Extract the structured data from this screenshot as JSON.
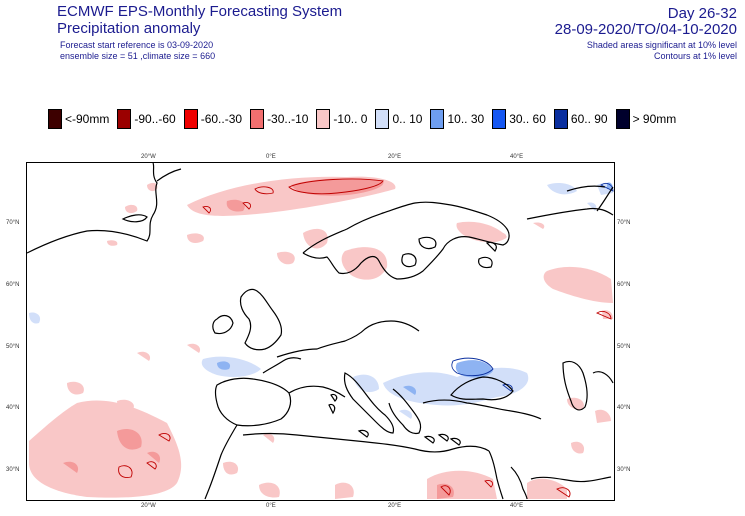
{
  "header": {
    "title_line1": "ECMWF EPS-Monthly Forecasting System",
    "title_line2": "Precipitation anomaly",
    "info_line1": "Forecast start reference is 03-09-2020",
    "info_line2": "ensemble size = 51  ,climate size = 660",
    "day_range": "Day 26-32",
    "date_range": "28-09-2020/TO/04-10-2020",
    "shaded_note": "Shaded areas significant at 10% level",
    "contour_note": "Contours at 1% level"
  },
  "legend": [
    {
      "label": "<-90mm",
      "color": "#3d0000"
    },
    {
      "label": "-90..-60",
      "color": "#9b0000"
    },
    {
      "label": "-60..-30",
      "color": "#ef0000"
    },
    {
      "label": "-30..-10",
      "color": "#f26f6f"
    },
    {
      "label": "-10..  0",
      "color": "#f9c7c7"
    },
    {
      "label": "0..  10",
      "color": "#d2dff9"
    },
    {
      "label": "10..  30",
      "color": "#6e9ef0"
    },
    {
      "label": "30..  60",
      "color": "#1557f2"
    },
    {
      "label": "60..  90",
      "color": "#0a2f9f"
    },
    {
      "label": ">  90mm",
      "color": "#00002c"
    }
  ],
  "map": {
    "top_lon_labels": [
      "20°W",
      "0°E",
      "20°E",
      "40°E"
    ],
    "bottom_lon_labels": [
      "20°W",
      "0°E",
      "20°E",
      "40°E"
    ],
    "left_lat_labels": [
      "70°N",
      "60°N",
      "50°N",
      "40°N",
      "30°N"
    ],
    "right_lat_labels": [
      "70°N",
      "60°N",
      "50°N",
      "40°N",
      "30°N"
    ]
  }
}
